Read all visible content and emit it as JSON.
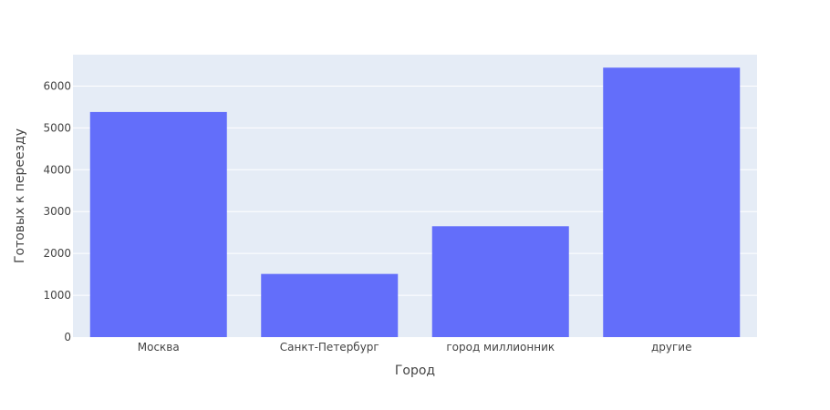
{
  "chart_data": {
    "type": "bar",
    "categories": [
      "Москва",
      "Санкт-Петербург",
      "город миллионник",
      "другие"
    ],
    "values": [
      5380,
      1510,
      2650,
      6440
    ],
    "xlabel": "Город",
    "ylabel": "Готовых к переезду",
    "ylim": [
      0,
      6750
    ],
    "yticks": [
      0,
      1000,
      2000,
      3000,
      4000,
      5000,
      6000
    ],
    "grid": true,
    "colors": {
      "bar": "#636efa",
      "plot_bg": "#e5ecf6",
      "grid": "#ffffff",
      "text": "#444444"
    }
  }
}
